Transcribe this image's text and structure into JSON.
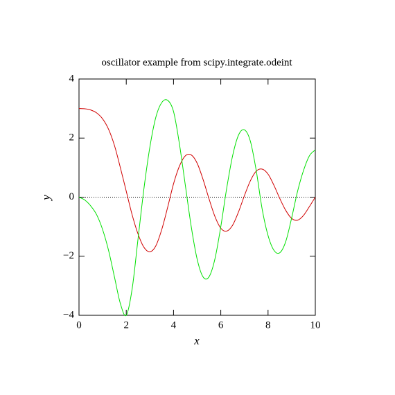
{
  "chart_data": {
    "type": "line",
    "title": "oscillator example from scipy.integrate.odeint",
    "xlabel": "x",
    "ylabel": "y",
    "x": [
      0,
      0.25,
      0.5,
      0.75,
      1,
      1.25,
      1.5,
      1.75,
      2,
      2.25,
      2.5,
      2.75,
      3,
      3.25,
      3.5,
      3.75,
      4,
      4.25,
      4.5,
      4.75,
      5,
      5.25,
      5.5,
      5.75,
      6,
      6.25,
      6.5,
      6.75,
      7,
      7.25,
      7.5,
      7.75,
      8,
      8.25,
      8.5,
      8.75,
      9,
      9.25,
      9.5,
      9.75,
      10
    ],
    "series": [
      {
        "color": "#d00000",
        "values": [
          3.0,
          2.99,
          2.95,
          2.85,
          2.65,
          2.3,
          1.75,
          1.0,
          0.2,
          -0.6,
          -1.25,
          -1.7,
          -1.85,
          -1.65,
          -1.1,
          -0.35,
          0.45,
          1.05,
          1.4,
          1.43,
          1.15,
          0.6,
          -0.05,
          -0.65,
          -1.05,
          -1.15,
          -0.95,
          -0.5,
          0.05,
          0.55,
          0.88,
          0.95,
          0.78,
          0.4,
          -0.05,
          -0.45,
          -0.72,
          -0.78,
          -0.62,
          -0.32,
          0.0
        ]
      },
      {
        "color": "#00e000",
        "values": [
          0,
          -0.1,
          -0.3,
          -0.6,
          -1.1,
          -1.8,
          -2.7,
          -3.6,
          -4.0,
          -3.1,
          -1.4,
          0.3,
          1.7,
          2.7,
          3.2,
          3.28,
          2.9,
          1.8,
          0.4,
          -1.0,
          -2.1,
          -2.7,
          -2.7,
          -2.1,
          -1.0,
          0.3,
          1.4,
          2.1,
          2.28,
          1.9,
          0.9,
          -0.4,
          -1.3,
          -1.8,
          -1.88,
          -1.5,
          -0.7,
          0.2,
          0.9,
          1.4,
          1.6
        ]
      }
    ],
    "xlim": [
      0,
      10
    ],
    "ylim": [
      -4,
      4
    ],
    "xticks": [
      0,
      2,
      4,
      6,
      8,
      10
    ],
    "yticks": [
      {
        "value": -4,
        "label": "−4"
      },
      {
        "value": -2,
        "label": "−2"
      },
      0,
      2,
      4
    ],
    "reference_line": {
      "y": 0,
      "style": "dotted"
    }
  }
}
